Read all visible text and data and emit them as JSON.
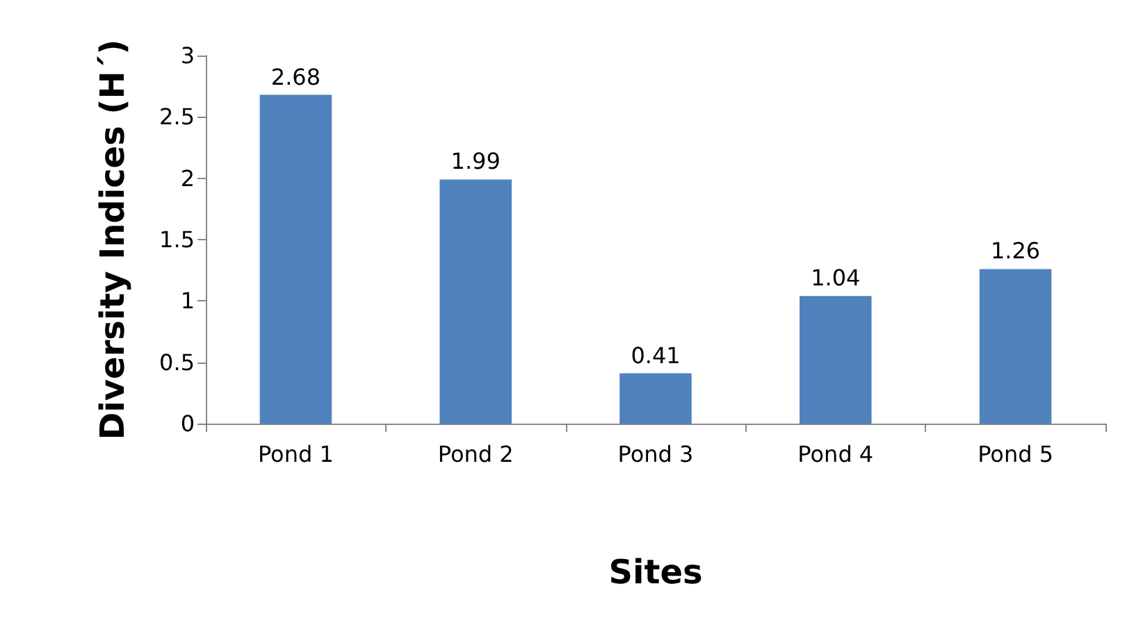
{
  "chart_data": {
    "type": "bar",
    "xlabel": "Sites",
    "ylabel": "Diversity Indices (H´)",
    "categories": [
      "Pond 1",
      "Pond 2",
      "Pond 3",
      "Pond 4",
      "Pond 5"
    ],
    "values": [
      2.68,
      1.99,
      0.41,
      1.04,
      1.26
    ],
    "color": "#4f81bd",
    "ylim": [
      0,
      3
    ],
    "yticks": [
      0,
      0.5,
      1,
      1.5,
      2,
      2.5,
      3
    ],
    "grid": false,
    "data_labels": true
  }
}
